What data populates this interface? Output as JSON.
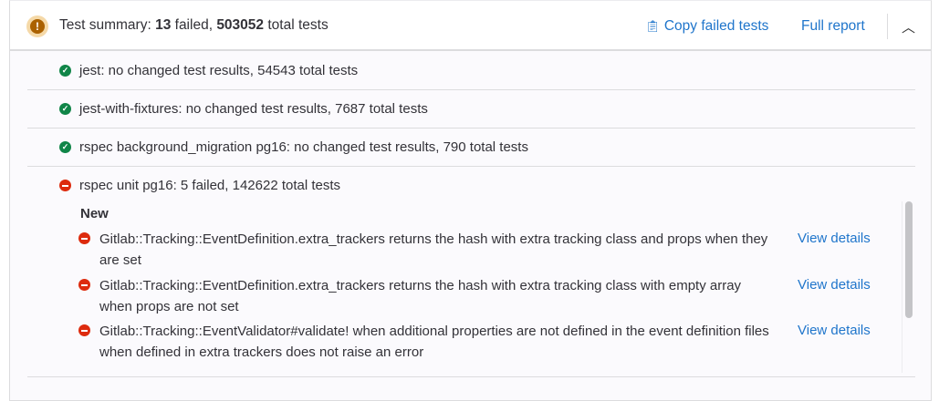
{
  "header": {
    "title_prefix": "Test summary: ",
    "failed_count": "13",
    "failed_text": " failed, ",
    "total_count": "503052",
    "total_text": " total tests",
    "copy_label": "Copy failed tests",
    "full_report_label": "Full report",
    "status_icon": "warning-icon",
    "collapse_icon": "chevron-up-icon"
  },
  "suites": [
    {
      "status": "success",
      "label": "jest: no changed test results, 54543 total tests"
    },
    {
      "status": "success",
      "label": "jest-with-fixtures: no changed test results, 7687 total tests"
    },
    {
      "status": "success",
      "label": "rspec background_migration pg16: no changed test results, 790 total tests"
    },
    {
      "status": "failed",
      "label": "rspec unit pg16: 5 failed, 142622 total tests"
    }
  ],
  "new_section": {
    "heading": "New",
    "items": [
      {
        "text": "Gitlab::Tracking::EventDefinition.extra_trackers returns the hash with extra tracking class and props when they are set",
        "action": "View details"
      },
      {
        "text": "Gitlab::Tracking::EventDefinition.extra_trackers returns the hash with extra tracking class with empty array when props are not set",
        "action": "View details"
      },
      {
        "text": "Gitlab::Tracking::EventValidator#validate! when additional properties are not defined in the event definition files when defined in extra trackers does not raise an error",
        "action": "View details"
      }
    ]
  },
  "colors": {
    "success": "#108548",
    "failed": "#dd2b0e",
    "warning": "#ab6100",
    "link": "#1f75cb"
  }
}
